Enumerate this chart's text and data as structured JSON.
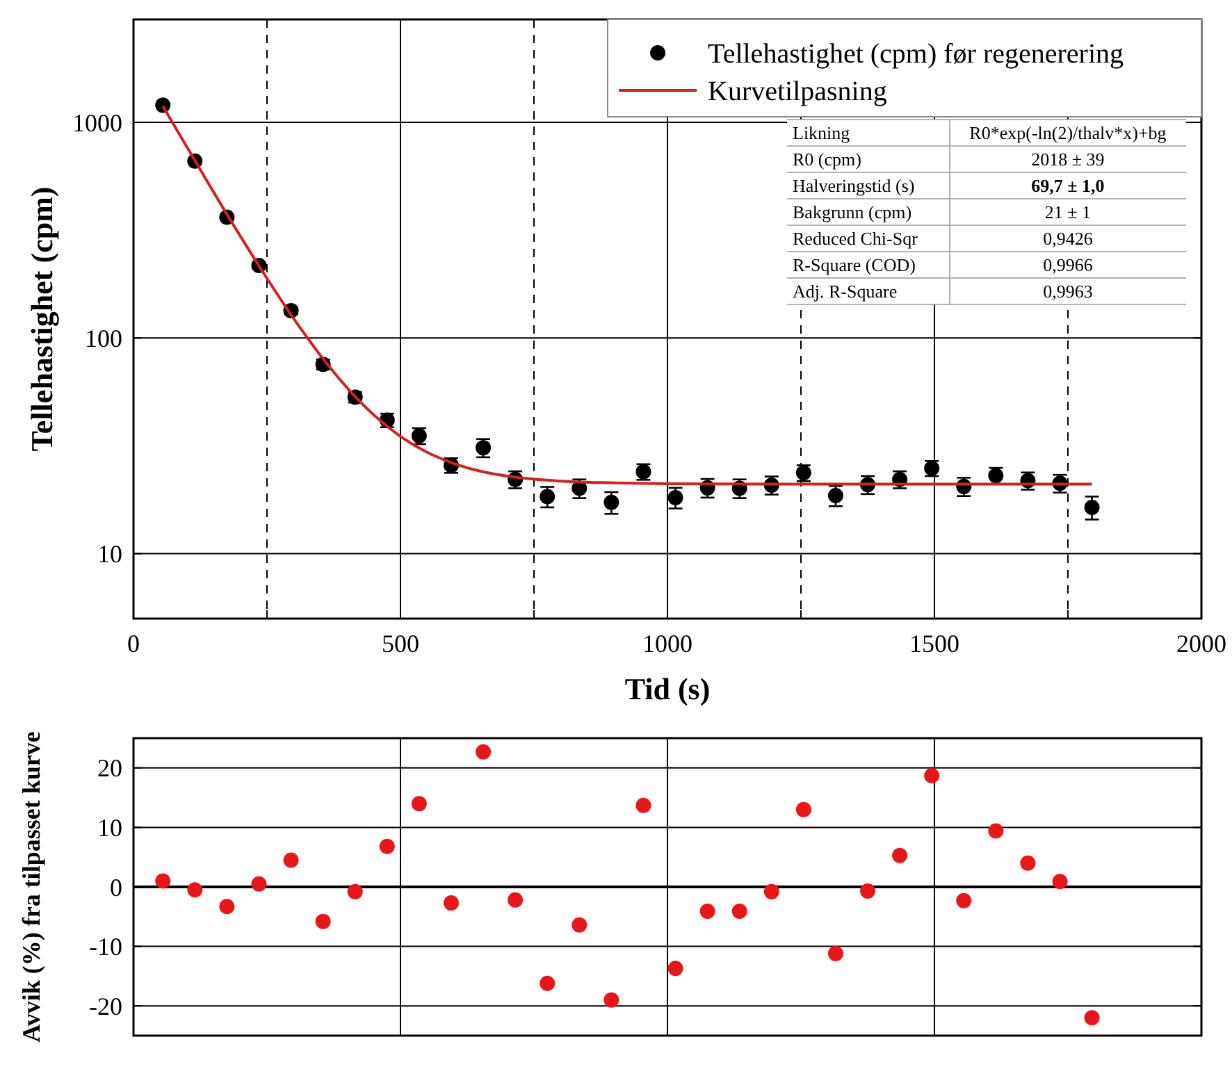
{
  "chart_data": [
    {
      "type": "scatter",
      "xlabel": "Tid (s)",
      "ylabel": "Tellehastighet (cpm)",
      "log": true,
      "grid": true,
      "legend": "top right",
      "xlim": [
        0,
        2000
      ],
      "xticks": [
        0,
        {
          "value": 250,
          "label": null
        },
        500,
        {
          "value": 750,
          "label": null
        },
        1000,
        {
          "value": 1250,
          "label": null
        },
        1500,
        {
          "value": 1750,
          "label": null
        },
        2000
      ],
      "ylim": [
        5,
        3000
      ],
      "yticks": [
        10,
        100,
        1000
      ],
      "series": [
        {
          "name": "Tellehastighet (cpm) før regenerering",
          "marker": "circle",
          "color": "#000000",
          "x": [
            55,
            115,
            175,
            235,
            295,
            355,
            415,
            475,
            535,
            595,
            655,
            715,
            775,
            835,
            895,
            955,
            1015,
            1075,
            1135,
            1195,
            1255,
            1315,
            1375,
            1435,
            1495,
            1555,
            1615,
            1675,
            1735,
            1795
          ],
          "values": [
            1201,
            661,
            363,
            217,
            134,
            75.5,
            53.2,
            41.6,
            35.2,
            25.7,
            31,
            22.1,
            18.4,
            20.1,
            17.3,
            24,
            18.2,
            20.2,
            20.1,
            20.8,
            23.7,
            18.6,
            20.9,
            22.1,
            24.9,
            20.5,
            23,
            21.8,
            21.2,
            16.4
          ],
          "errors": [
            16,
            12,
            9,
            7,
            5,
            4,
            3,
            3,
            3,
            2,
            3,
            2,
            2,
            2,
            2,
            2,
            2,
            2,
            2,
            2,
            2,
            2,
            2,
            2,
            2,
            2,
            2,
            2,
            2,
            2
          ]
        },
        {
          "name": "Kurvetilpasning",
          "type": "line",
          "color": "#d62020",
          "x": [
            55,
            100,
            150,
            200,
            250,
            300,
            350,
            400,
            450,
            500,
            550,
            600,
            650,
            700,
            800,
            900,
            1000,
            1200,
            1500,
            1795
          ],
          "values": [
            1189,
            768,
            475,
            297,
            189,
            123,
            83.2,
            58.8,
            44,
            35,
            29.5,
            26.2,
            24.1,
            22.9,
            21.7,
            21.3,
            21.1,
            21,
            21,
            21
          ]
        }
      ],
      "annotations": [
        "Likning",
        "R0*exp(-ln(2)/thalv*x)+bg",
        "R0 (cpm)",
        "2018 ± 39",
        "Halveringstid (s)",
        "69,7 ± 1,0",
        "Bakgrunn (cpm)",
        "21 ± 1",
        "Reduced Chi-Sqr",
        "0,9426",
        "R-Square (COD)",
        "0,9966",
        "Adj. R-Square",
        "0,9963"
      ]
    },
    {
      "type": "scatter",
      "ylabel": "Avvik (%) fra tilpasset kurve",
      "grid": true,
      "tick_labels": "y",
      "xlim": [
        0,
        2000
      ],
      "xticks": [
        0,
        500,
        1000,
        1500,
        2000
      ],
      "ylim": [
        -25,
        25
      ],
      "yticks": [
        -20,
        -10,
        0,
        10,
        20
      ],
      "ref_lines": [
        {
          "axis": "y",
          "value": 0,
          "color": "#000000"
        }
      ],
      "series": [
        {
          "marker": "circle",
          "color": "#e8161a",
          "x": [
            55,
            115,
            175,
            235,
            295,
            355,
            415,
            475,
            535,
            595,
            655,
            715,
            775,
            835,
            895,
            955,
            1015,
            1075,
            1135,
            1195,
            1255,
            1315,
            1375,
            1435,
            1495,
            1555,
            1615,
            1675,
            1735,
            1795
          ],
          "values": [
            1,
            -0.5,
            -3.3,
            0.5,
            4.5,
            -5.8,
            -0.8,
            6.8,
            14,
            -2.7,
            22.7,
            -2.2,
            -16.2,
            -6.4,
            -19,
            13.7,
            -13.7,
            -4.1,
            -4.1,
            -0.8,
            13,
            -11.2,
            -0.7,
            5.3,
            18.7,
            -2.3,
            9.4,
            4,
            0.9,
            -22
          ]
        }
      ]
    }
  ]
}
